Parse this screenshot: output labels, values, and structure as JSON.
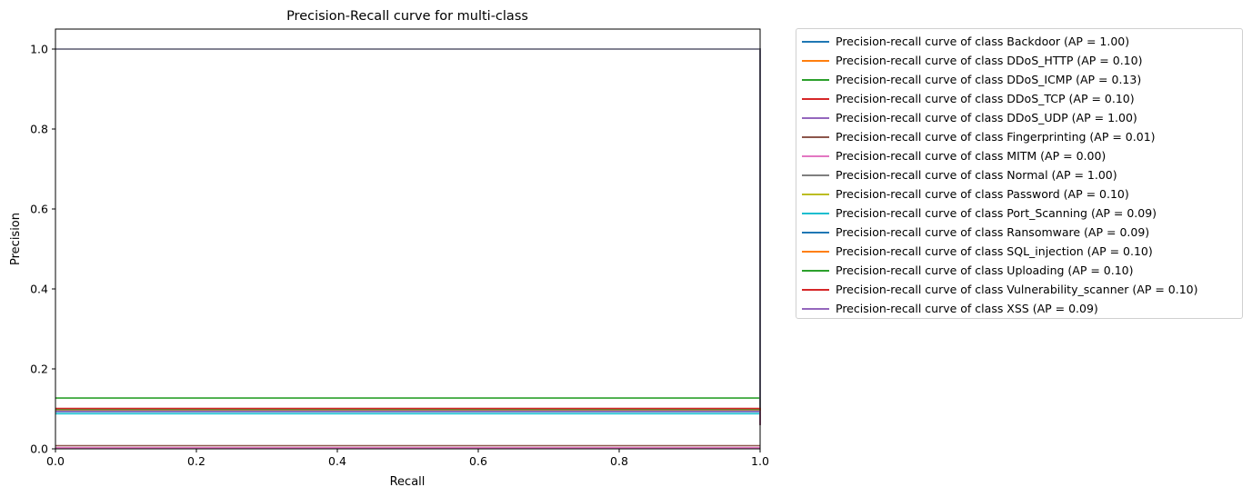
{
  "chart_data": {
    "type": "line",
    "title": "Precision-Recall curve for multi-class",
    "xlabel": "Recall",
    "ylabel": "Precision",
    "xlim": [
      0.0,
      1.0
    ],
    "ylim": [
      0.0,
      1.05
    ],
    "xticks": [
      "0.0",
      "0.2",
      "0.4",
      "0.6",
      "0.8",
      "1.0"
    ],
    "yticks": [
      "0.0",
      "0.2",
      "0.4",
      "0.6",
      "0.8",
      "1.0"
    ],
    "grid": false,
    "legend_position": "outside-right",
    "series": [
      {
        "name": "Precision-recall curve of class Backdoor (AP = 1.00)",
        "color": "#1f77b4",
        "x": [
          0.0,
          1.0
        ],
        "y": [
          1.0,
          1.0
        ]
      },
      {
        "name": "Precision-recall curve of class DDoS_HTTP (AP = 0.10)",
        "color": "#ff7f0e",
        "x": [
          0.0,
          1.0
        ],
        "y": [
          0.1,
          0.1
        ]
      },
      {
        "name": "Precision-recall curve of class DDoS_ICMP (AP = 0.13)",
        "color": "#2ca02c",
        "x": [
          0.0,
          1.0
        ],
        "y": [
          0.127,
          0.127
        ]
      },
      {
        "name": "Precision-recall curve of class DDoS_TCP (AP = 0.10)",
        "color": "#d62728",
        "x": [
          0.0,
          1.0
        ],
        "y": [
          0.1,
          0.1
        ]
      },
      {
        "name": "Precision-recall curve of class DDoS_UDP (AP = 1.00)",
        "color": "#9467bd",
        "x": [
          0.0,
          1.0
        ],
        "y": [
          1.0,
          1.0
        ]
      },
      {
        "name": "Precision-recall curve of class Fingerprinting (AP = 0.01)",
        "color": "#8c564b",
        "x": [
          0.0,
          1.0
        ],
        "y": [
          0.008,
          0.008
        ]
      },
      {
        "name": "Precision-recall curve of class MITM (AP = 0.00)",
        "color": "#e377c2",
        "x": [
          0.0,
          1.0
        ],
        "y": [
          0.003,
          0.003
        ]
      },
      {
        "name": "Precision-recall curve of class Normal (AP = 1.00)",
        "color": "#7f7f7f",
        "x": [
          0.0,
          1.0
        ],
        "y": [
          1.0,
          1.0
        ]
      },
      {
        "name": "Precision-recall curve of class Password (AP = 0.10)",
        "color": "#bcbd22",
        "x": [
          0.0,
          1.0
        ],
        "y": [
          0.097,
          0.097
        ]
      },
      {
        "name": "Precision-recall curve of class Port_Scanning (AP = 0.09)",
        "color": "#17becf",
        "x": [
          0.0,
          1.0
        ],
        "y": [
          0.088,
          0.088
        ]
      },
      {
        "name": "Precision-recall curve of class Ransomware (AP = 0.09)",
        "color": "#1f77b4",
        "x": [
          0.0,
          1.0
        ],
        "y": [
          0.093,
          0.093
        ]
      },
      {
        "name": "Precision-recall curve of class SQL_injection (AP = 0.10)",
        "color": "#ff7f0e",
        "x": [
          0.0,
          1.0
        ],
        "y": [
          0.098,
          0.098
        ]
      },
      {
        "name": "Precision-recall curve of class Uploading (AP = 0.10)",
        "color": "#2ca02c",
        "x": [
          0.0,
          1.0
        ],
        "y": [
          0.099,
          0.099
        ]
      },
      {
        "name": "Precision-recall curve of class Vulnerability_scanner (AP = 0.10)",
        "color": "#d62728",
        "x": [
          0.0,
          1.0
        ],
        "y": [
          0.101,
          0.101
        ]
      },
      {
        "name": "Precision-recall curve of class XSS (AP = 0.09)",
        "color": "#9467bd",
        "x": [
          0.0,
          1.0
        ],
        "y": [
          0.094,
          0.094
        ]
      }
    ]
  }
}
